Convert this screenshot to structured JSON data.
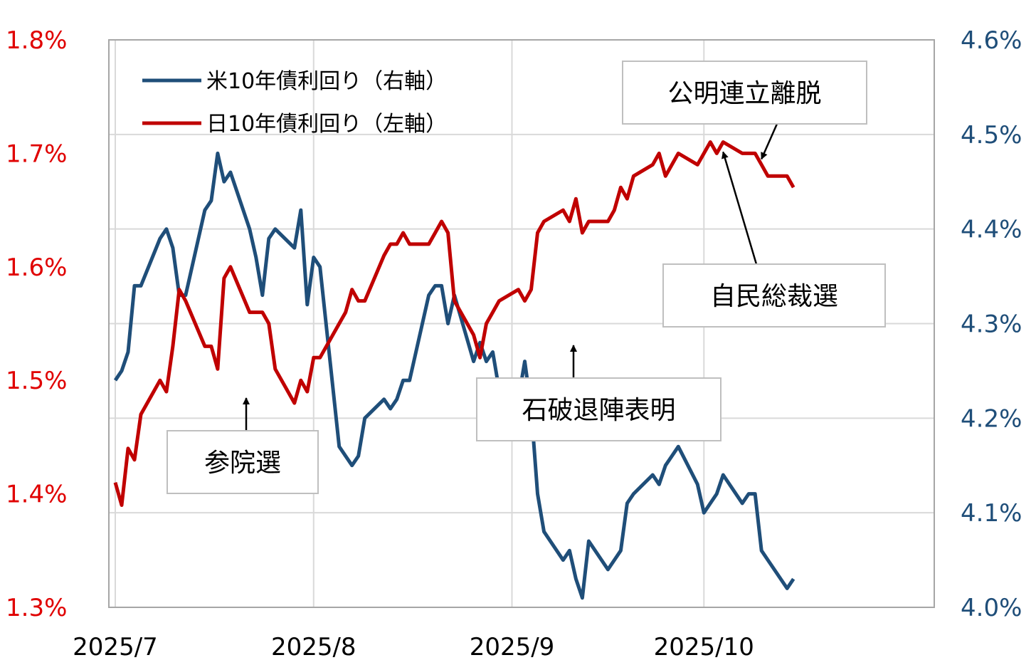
{
  "chart_data": {
    "type": "line",
    "x_ticks": [
      "2025/7",
      "2025/8",
      "2025/9",
      "2025/10"
    ],
    "y_left": {
      "min": 1.3,
      "max": 1.8,
      "ticks": [
        "1.8%",
        "1.7%",
        "1.6%",
        "1.5%",
        "1.4%",
        "1.3%"
      ],
      "color": "#e00000"
    },
    "y_right": {
      "min": 4.0,
      "max": 4.6,
      "ticks": [
        "4.6%",
        "4.5%",
        "4.4%",
        "4.3%",
        "4.2%",
        "4.1%",
        "4.0%"
      ],
      "color": "#1f4e79"
    },
    "grid": true,
    "legend": "top-left",
    "series": [
      {
        "name": "米10年債利回り（右軸）",
        "axis": "right",
        "color": "#1f4e79",
        "x": [
          "2025-07-01",
          "2025-07-02",
          "2025-07-03",
          "2025-07-04",
          "2025-07-05",
          "2025-07-08",
          "2025-07-09",
          "2025-07-10",
          "2025-07-11",
          "2025-07-12",
          "2025-07-15",
          "2025-07-16",
          "2025-07-17",
          "2025-07-18",
          "2025-07-19",
          "2025-07-22",
          "2025-07-23",
          "2025-07-24",
          "2025-07-25",
          "2025-07-26",
          "2025-07-29",
          "2025-07-30",
          "2025-07-31",
          "2025-08-01",
          "2025-08-02",
          "2025-08-05",
          "2025-08-06",
          "2025-08-07",
          "2025-08-08",
          "2025-08-09",
          "2025-08-12",
          "2025-08-13",
          "2025-08-14",
          "2025-08-15",
          "2025-08-16",
          "2025-08-19",
          "2025-08-20",
          "2025-08-21",
          "2025-08-22",
          "2025-08-23",
          "2025-08-26",
          "2025-08-27",
          "2025-08-28",
          "2025-08-29",
          "2025-08-30",
          "2025-09-02",
          "2025-09-03",
          "2025-09-04",
          "2025-09-05",
          "2025-09-06",
          "2025-09-09",
          "2025-09-10",
          "2025-09-11",
          "2025-09-12",
          "2025-09-13",
          "2025-09-16",
          "2025-09-17",
          "2025-09-18",
          "2025-09-19",
          "2025-09-20",
          "2025-09-23",
          "2025-09-24",
          "2025-09-25",
          "2025-09-26",
          "2025-09-27",
          "2025-09-30",
          "2025-10-01",
          "2025-10-02",
          "2025-10-03",
          "2025-10-04",
          "2025-10-07",
          "2025-10-08",
          "2025-10-09",
          "2025-10-10",
          "2025-10-11",
          "2025-10-14",
          "2025-10-15"
        ],
        "values": [
          4.24,
          4.25,
          4.27,
          4.34,
          4.34,
          4.39,
          4.4,
          4.38,
          4.33,
          4.33,
          4.42,
          4.43,
          4.48,
          4.45,
          4.46,
          4.4,
          4.37,
          4.33,
          4.39,
          4.4,
          4.38,
          4.42,
          4.32,
          4.37,
          4.36,
          4.17,
          4.16,
          4.15,
          4.16,
          4.2,
          4.22,
          4.21,
          4.22,
          4.24,
          4.24,
          4.33,
          4.34,
          4.34,
          4.3,
          4.33,
          4.26,
          4.28,
          4.26,
          4.27,
          4.23,
          4.22,
          4.26,
          4.21,
          4.12,
          4.08,
          4.05,
          4.06,
          4.03,
          4.01,
          4.07,
          4.04,
          4.05,
          4.06,
          4.11,
          4.12,
          4.14,
          4.13,
          4.15,
          4.16,
          4.17,
          4.13,
          4.1,
          4.11,
          4.12,
          4.14,
          4.11,
          4.12,
          4.12,
          4.06,
          4.05,
          4.02,
          4.03
        ]
      },
      {
        "name": "日10年債利回り（左軸）",
        "axis": "left",
        "color": "#c00000",
        "x": [
          "2025-07-01",
          "2025-07-02",
          "2025-07-03",
          "2025-07-04",
          "2025-07-05",
          "2025-07-08",
          "2025-07-09",
          "2025-07-10",
          "2025-07-11",
          "2025-07-12",
          "2025-07-15",
          "2025-07-16",
          "2025-07-17",
          "2025-07-18",
          "2025-07-19",
          "2025-07-22",
          "2025-07-23",
          "2025-07-24",
          "2025-07-25",
          "2025-07-26",
          "2025-07-29",
          "2025-07-30",
          "2025-07-31",
          "2025-08-01",
          "2025-08-02",
          "2025-08-05",
          "2025-08-06",
          "2025-08-07",
          "2025-08-08",
          "2025-08-09",
          "2025-08-12",
          "2025-08-13",
          "2025-08-14",
          "2025-08-15",
          "2025-08-16",
          "2025-08-19",
          "2025-08-20",
          "2025-08-21",
          "2025-08-22",
          "2025-08-23",
          "2025-08-26",
          "2025-08-27",
          "2025-08-28",
          "2025-08-29",
          "2025-08-30",
          "2025-09-02",
          "2025-09-03",
          "2025-09-04",
          "2025-09-05",
          "2025-09-06",
          "2025-09-09",
          "2025-09-10",
          "2025-09-11",
          "2025-09-12",
          "2025-09-13",
          "2025-09-16",
          "2025-09-17",
          "2025-09-18",
          "2025-09-19",
          "2025-09-20",
          "2025-09-23",
          "2025-09-24",
          "2025-09-25",
          "2025-09-26",
          "2025-09-27",
          "2025-09-30",
          "2025-10-01",
          "2025-10-02",
          "2025-10-03",
          "2025-10-04",
          "2025-10-07",
          "2025-10-08",
          "2025-10-09",
          "2025-10-10",
          "2025-10-11",
          "2025-10-14",
          "2025-10-15"
        ],
        "values": [
          1.41,
          1.39,
          1.44,
          1.43,
          1.47,
          1.5,
          1.49,
          1.53,
          1.58,
          1.57,
          1.53,
          1.53,
          1.51,
          1.59,
          1.6,
          1.56,
          1.56,
          1.56,
          1.55,
          1.51,
          1.48,
          1.5,
          1.49,
          1.52,
          1.52,
          1.55,
          1.56,
          1.58,
          1.57,
          1.57,
          1.61,
          1.62,
          1.62,
          1.63,
          1.62,
          1.62,
          1.63,
          1.64,
          1.63,
          1.57,
          1.54,
          1.52,
          1.55,
          1.56,
          1.57,
          1.58,
          1.57,
          1.58,
          1.63,
          1.64,
          1.65,
          1.64,
          1.66,
          1.63,
          1.64,
          1.64,
          1.65,
          1.67,
          1.66,
          1.68,
          1.69,
          1.7,
          1.68,
          1.69,
          1.7,
          1.69,
          1.7,
          1.71,
          1.7,
          1.71,
          1.7,
          1.7,
          1.7,
          1.69,
          1.68,
          1.68,
          1.67
        ]
      }
    ],
    "annotations": [
      {
        "id": "upper-house-election",
        "text": "参院選",
        "date": "2025-07-20"
      },
      {
        "id": "ishiba-resignation",
        "text": "石破退陣表明",
        "date": "2025-09-07"
      },
      {
        "id": "ldp-leadership-election",
        "text": "自民総裁選",
        "date": "2025-10-04"
      },
      {
        "id": "komeito-exit",
        "text": "公明連立離脱",
        "date": "2025-10-10"
      }
    ]
  }
}
